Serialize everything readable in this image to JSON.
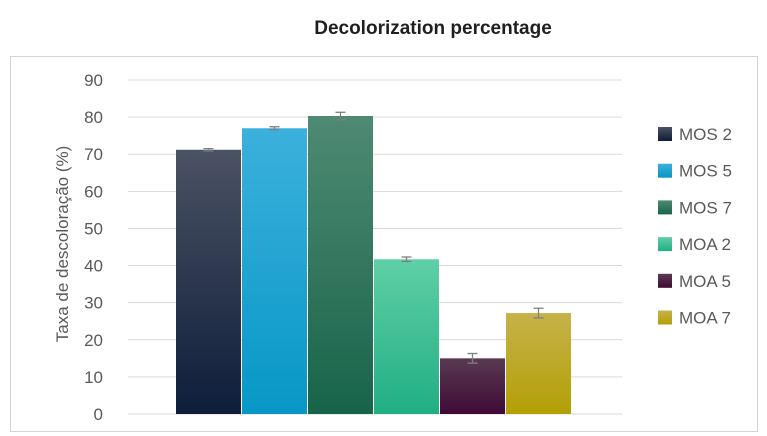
{
  "chart_data": {
    "type": "bar",
    "title": "Decolorization percentage",
    "xlabel": "",
    "ylabel": "Taxa de descoloração (%)",
    "ylim": [
      0,
      90
    ],
    "yticks": [
      0,
      10,
      20,
      30,
      40,
      50,
      60,
      70,
      80,
      90
    ],
    "grid": true,
    "legend_position": "right",
    "series": [
      {
        "name": "MOS 2",
        "value": 71.2,
        "error": 0.3,
        "color_top": "#4a5263",
        "color_bottom": "#0e1d3a"
      },
      {
        "name": "MOS 5",
        "value": 77.0,
        "error": 0.4,
        "color_top": "#3cb0dc",
        "color_bottom": "#0797c6"
      },
      {
        "name": "MOS 7",
        "value": 80.3,
        "error": 1.0,
        "color_top": "#4f8a73",
        "color_bottom": "#17644a"
      },
      {
        "name": "MOA 2",
        "value": 41.7,
        "error": 0.6,
        "color_top": "#5fcfa6",
        "color_bottom": "#21ae83"
      },
      {
        "name": "MOA 5",
        "value": 15.0,
        "error": 1.3,
        "color_top": "#5a3a52",
        "color_bottom": "#3f0a35"
      },
      {
        "name": "MOA 7",
        "value": 27.2,
        "error": 1.3,
        "color_top": "#c6b24a",
        "color_bottom": "#b39f05"
      }
    ]
  }
}
